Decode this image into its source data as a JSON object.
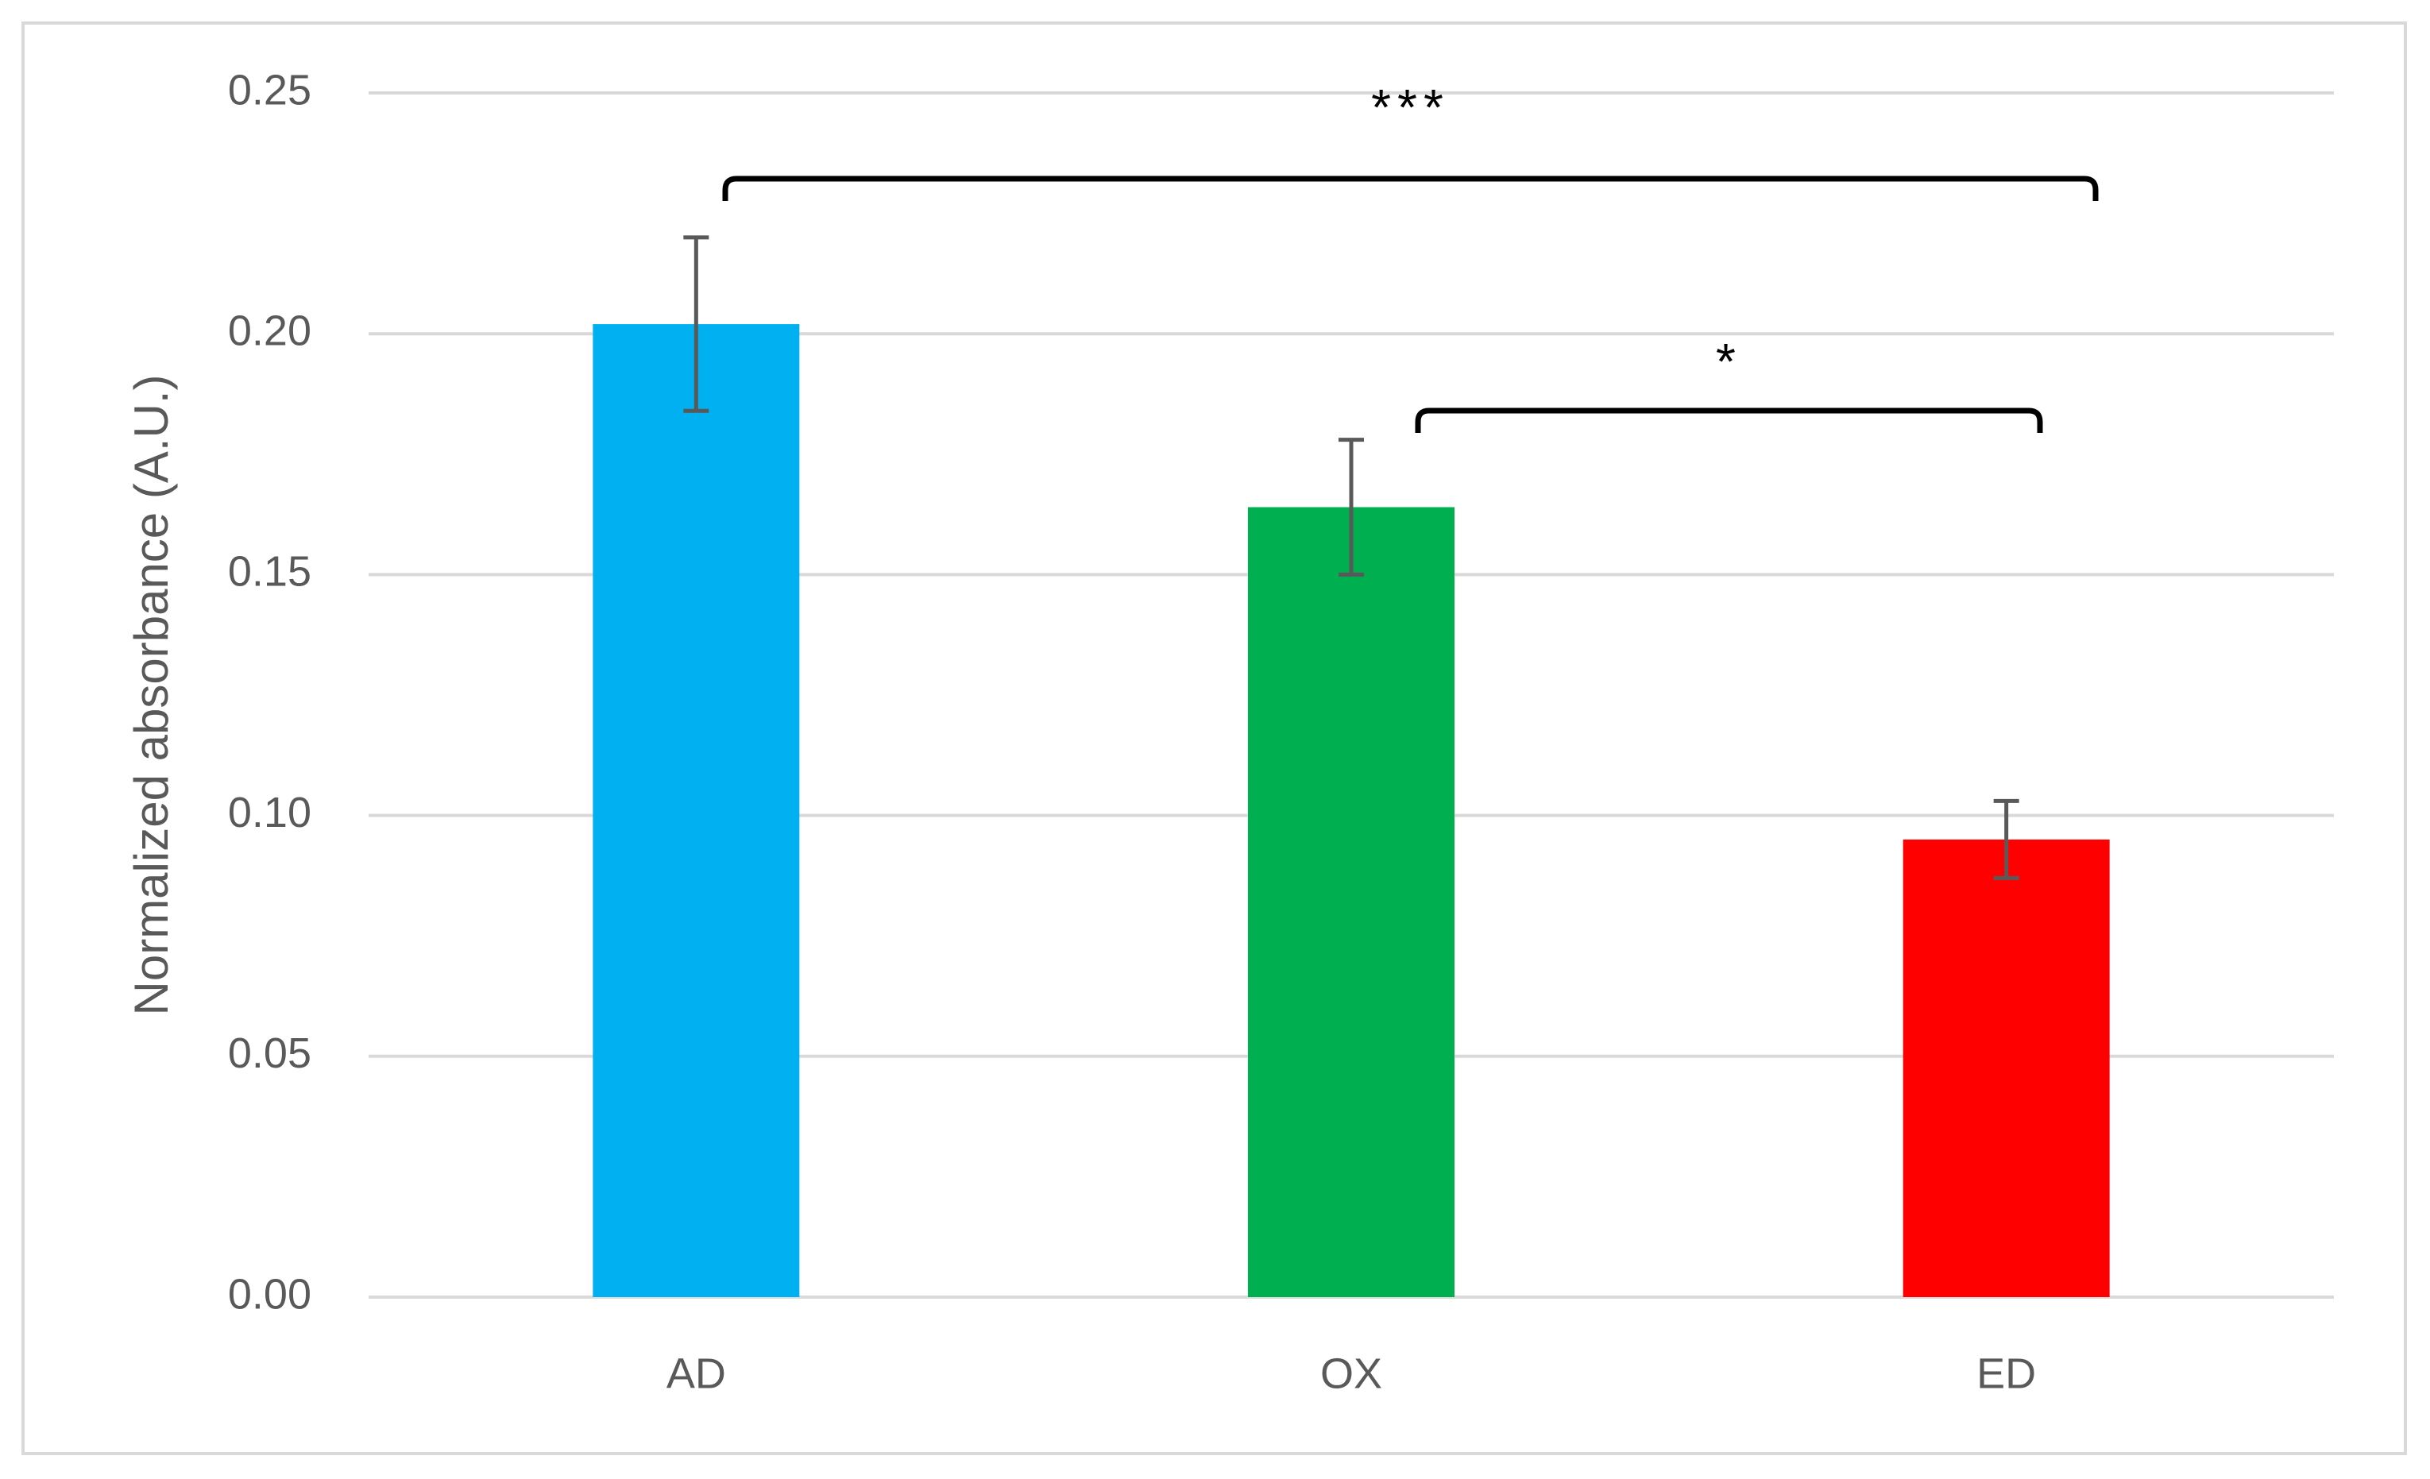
{
  "chart_data": {
    "type": "bar",
    "y_label": "Normalized absorbance (A.U.)",
    "categories": [
      "AD",
      "OX",
      "ED"
    ],
    "values": [
      0.202,
      0.164,
      0.095
    ],
    "errors": [
      0.018,
      0.014,
      0.008
    ],
    "colors": [
      "#00b0f0",
      "#00b050",
      "#ff0000"
    ],
    "ylim": [
      0,
      0.25
    ],
    "yticks": [
      {
        "value": 0,
        "label": "0.00"
      },
      {
        "value": 0.05,
        "label": "0.05"
      },
      {
        "value": 0.1,
        "label": "0.10"
      },
      {
        "value": 0.15,
        "label": "0.15"
      },
      {
        "value": 0.2,
        "label": "0.20"
      },
      {
        "value": 0.25,
        "label": "0.25"
      }
    ],
    "grid": true,
    "annotations": [
      {
        "text": "***",
        "between": [
          "AD",
          "ED"
        ]
      },
      {
        "text": "*",
        "between": [
          "OX",
          "ED"
        ]
      }
    ]
  }
}
